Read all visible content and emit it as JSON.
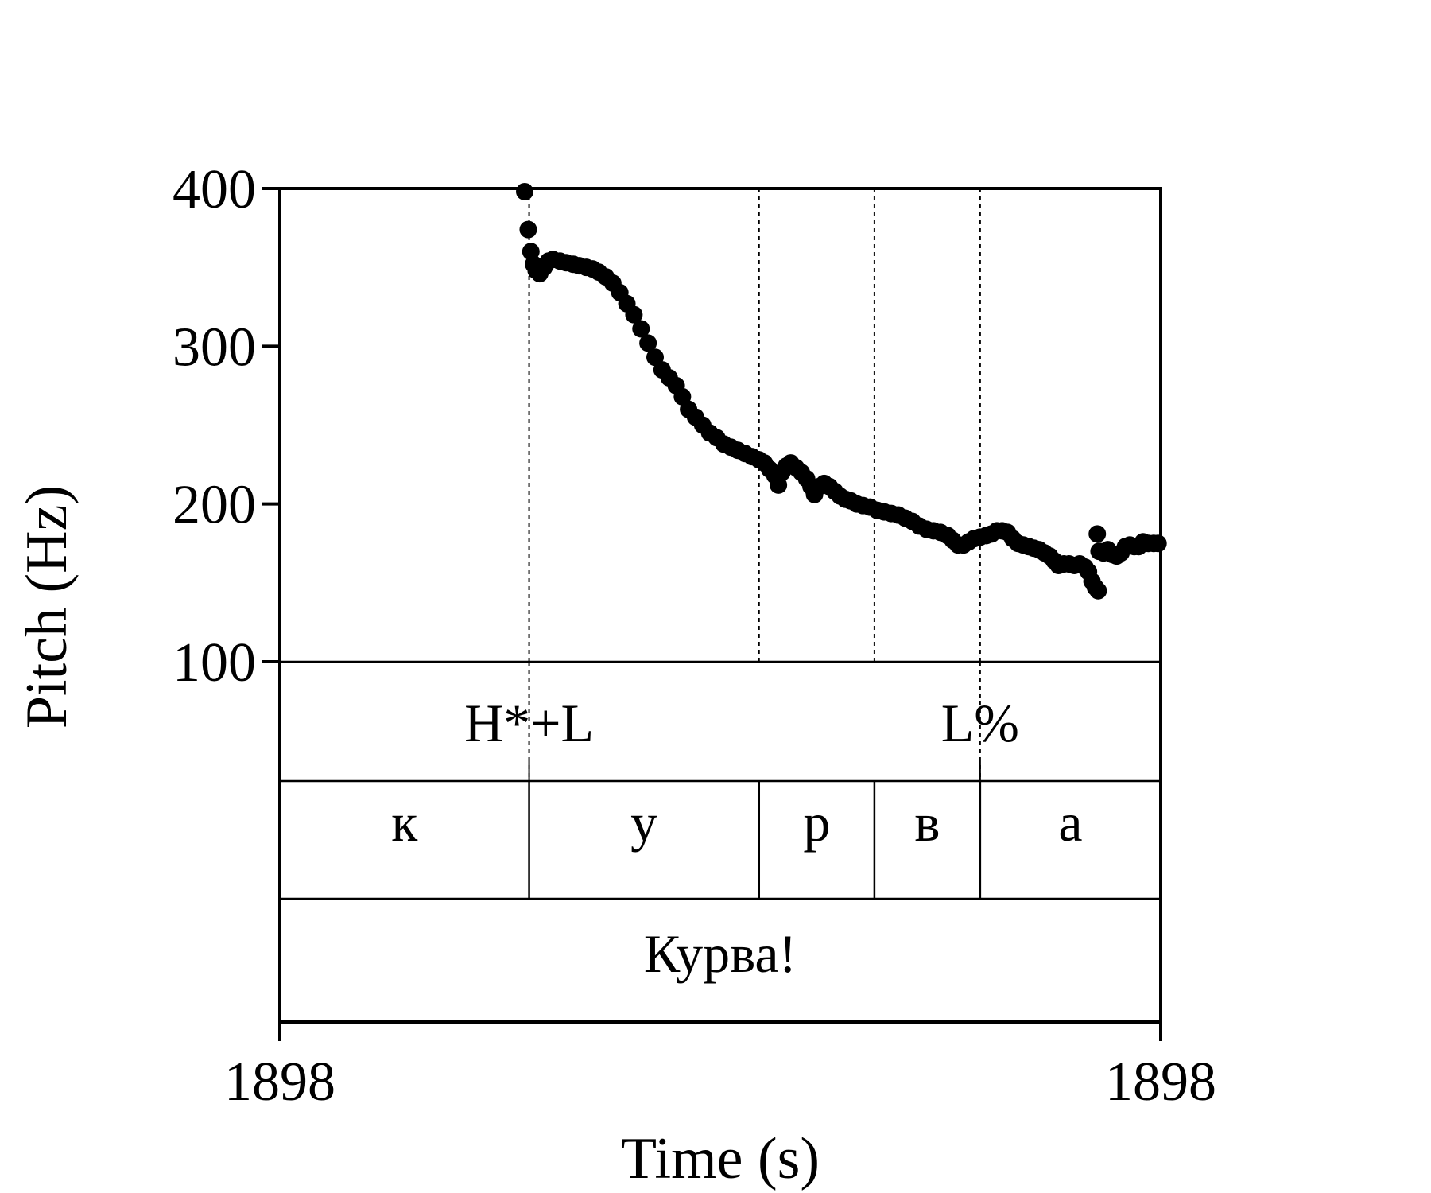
{
  "chart_data": {
    "type": "scatter",
    "xlabel": "Time (s)",
    "ylabel": "Pitch (Hz)",
    "xlim": [
      0,
      1
    ],
    "ylim": [
      100,
      400
    ],
    "x_tick_labels": [
      "1898",
      "1898"
    ],
    "y_ticks": [
      100,
      200,
      300,
      400
    ],
    "y_tick_labels": [
      "100",
      "200",
      "300",
      "400"
    ],
    "boundaries": [
      0.283,
      0.544,
      0.675,
      0.795
    ],
    "tone_tier": [
      {
        "label": "H*+L",
        "x": 0.283
      },
      {
        "label": "L%",
        "x": 0.795
      }
    ],
    "segment_tier": [
      {
        "label": "к",
        "start": 0,
        "end": 0.283
      },
      {
        "label": "у",
        "start": 0.283,
        "end": 0.544
      },
      {
        "label": "р",
        "start": 0.544,
        "end": 0.675
      },
      {
        "label": "в",
        "start": 0.675,
        "end": 0.795
      },
      {
        "label": "а",
        "start": 0.795,
        "end": 1
      }
    ],
    "word_tier": [
      {
        "label": "Курва!",
        "start": 0,
        "end": 1
      }
    ],
    "series": [
      {
        "points": [
          [
            0.278,
            398
          ],
          [
            0.282,
            374
          ],
          [
            0.285,
            360
          ],
          [
            0.288,
            352
          ],
          [
            0.291,
            348
          ],
          [
            0.295,
            346
          ],
          [
            0.3,
            350
          ],
          [
            0.305,
            354
          ],
          [
            0.31,
            355
          ],
          [
            0.318,
            354
          ],
          [
            0.325,
            353
          ],
          [
            0.333,
            352
          ],
          [
            0.34,
            351
          ],
          [
            0.348,
            350
          ],
          [
            0.355,
            349
          ],
          [
            0.362,
            347
          ],
          [
            0.37,
            344
          ],
          [
            0.378,
            340
          ],
          [
            0.386,
            334
          ],
          [
            0.394,
            327
          ],
          [
            0.402,
            320
          ],
          [
            0.41,
            311
          ],
          [
            0.418,
            302
          ],
          [
            0.426,
            293
          ],
          [
            0.434,
            285
          ],
          [
            0.442,
            280
          ],
          [
            0.45,
            275
          ],
          [
            0.457,
            268
          ],
          [
            0.464,
            260
          ],
          [
            0.472,
            255
          ],
          [
            0.48,
            250
          ],
          [
            0.488,
            245
          ],
          [
            0.496,
            242
          ],
          [
            0.504,
            238
          ],
          [
            0.512,
            236
          ],
          [
            0.52,
            234
          ],
          [
            0.528,
            232
          ],
          [
            0.536,
            230
          ],
          [
            0.544,
            228
          ],
          [
            0.55,
            226
          ],
          [
            0.556,
            222
          ],
          [
            0.562,
            218
          ],
          [
            0.566,
            212
          ],
          [
            0.57,
            220
          ],
          [
            0.575,
            224
          ],
          [
            0.58,
            226
          ],
          [
            0.586,
            223
          ],
          [
            0.592,
            220
          ],
          [
            0.598,
            216
          ],
          [
            0.603,
            211
          ],
          [
            0.607,
            206
          ],
          [
            0.612,
            211
          ],
          [
            0.618,
            213
          ],
          [
            0.624,
            211
          ],
          [
            0.63,
            208
          ],
          [
            0.636,
            205
          ],
          [
            0.642,
            203
          ],
          [
            0.648,
            202
          ],
          [
            0.655,
            200
          ],
          [
            0.662,
            199
          ],
          [
            0.67,
            198
          ],
          [
            0.678,
            196
          ],
          [
            0.686,
            195
          ],
          [
            0.694,
            194
          ],
          [
            0.702,
            193
          ],
          [
            0.71,
            191
          ],
          [
            0.718,
            189
          ],
          [
            0.726,
            186
          ],
          [
            0.734,
            184
          ],
          [
            0.742,
            183
          ],
          [
            0.75,
            182
          ],
          [
            0.758,
            180
          ],
          [
            0.764,
            177
          ],
          [
            0.77,
            174
          ],
          [
            0.776,
            174
          ],
          [
            0.782,
            176
          ],
          [
            0.788,
            178
          ],
          [
            0.795,
            179
          ],
          [
            0.802,
            180
          ],
          [
            0.808,
            181
          ],
          [
            0.814,
            183
          ],
          [
            0.82,
            183
          ],
          [
            0.826,
            182
          ],
          [
            0.832,
            178
          ],
          [
            0.838,
            175
          ],
          [
            0.844,
            174
          ],
          [
            0.85,
            173
          ],
          [
            0.856,
            172
          ],
          [
            0.862,
            171
          ],
          [
            0.868,
            169
          ],
          [
            0.874,
            167
          ],
          [
            0.879,
            164
          ],
          [
            0.884,
            161
          ],
          [
            0.89,
            162
          ],
          [
            0.896,
            162
          ],
          [
            0.902,
            161
          ],
          [
            0.908,
            162
          ],
          [
            0.914,
            160
          ],
          [
            0.918,
            157
          ],
          [
            0.922,
            151
          ],
          [
            0.926,
            147
          ],
          [
            0.929,
            145
          ],
          [
            0.928,
            181
          ],
          [
            0.93,
            170
          ],
          [
            0.935,
            169
          ],
          [
            0.94,
            171
          ],
          [
            0.945,
            168
          ],
          [
            0.95,
            167
          ],
          [
            0.955,
            169
          ],
          [
            0.96,
            173
          ],
          [
            0.965,
            174
          ],
          [
            0.97,
            173
          ],
          [
            0.975,
            173
          ],
          [
            0.98,
            176
          ],
          [
            0.986,
            175
          ],
          [
            0.992,
            175
          ],
          [
            0.997,
            175
          ]
        ]
      }
    ]
  }
}
